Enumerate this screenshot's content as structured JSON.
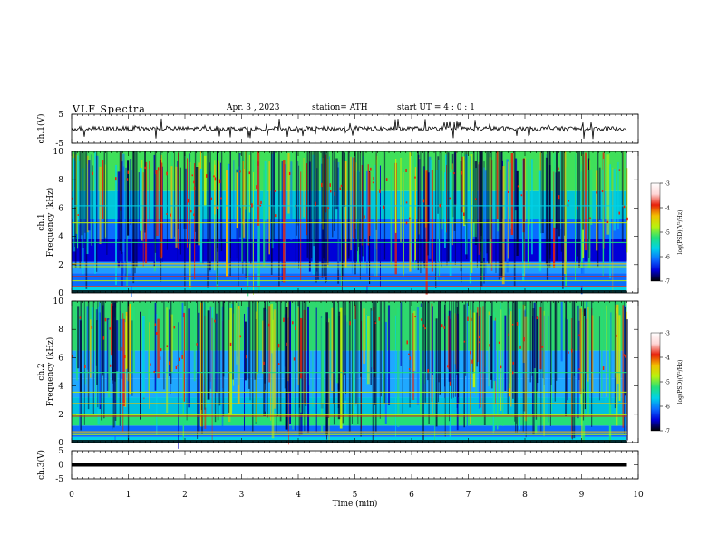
{
  "header": {
    "title": "VLF  Spectra",
    "date": "Apr. 3  , 2023",
    "station": "station= ATH",
    "start": "start  UT  =   4  : 0  : 1"
  },
  "chart_data": [
    {
      "type": "line",
      "ylabel": "ch.1(V)",
      "ylim": [
        -5,
        5
      ],
      "y_ticks": [
        "5",
        "-5"
      ],
      "x_range_min": [
        0,
        9.8
      ],
      "description_of_signal": "noisy waveform around 0 V with spikes"
    },
    {
      "type": "heatmap",
      "ylabel": "ch.1\nFrequency (kHz)",
      "ylabel_lines": [
        "ch.1",
        "Frequency (kHz)"
      ],
      "ylim": [
        0,
        10
      ],
      "y_ticks": [
        "0",
        "2",
        "4",
        "6",
        "8",
        "10"
      ],
      "colorbar": {
        "label": "log(PSD)(V²/Hz)",
        "ticks": [
          "-3",
          "-4",
          "-5",
          "-6",
          "-7"
        ],
        "range": [
          -7,
          -3
        ]
      }
    },
    {
      "type": "heatmap",
      "ylabel": "ch.2\nFrequency (kHz)",
      "ylabel_lines": [
        "ch.2",
        "Frequency (kHz)"
      ],
      "ylim": [
        0,
        10
      ],
      "y_ticks": [
        "0",
        "2",
        "4",
        "6",
        "8",
        "10"
      ],
      "colorbar": {
        "label": "log(PSD)(V²/Hz)",
        "ticks": [
          "-3",
          "-4",
          "-5",
          "-6",
          "-7"
        ],
        "range": [
          -7,
          -3
        ]
      }
    },
    {
      "type": "line",
      "ylabel": "ch.3(V)",
      "ylim": [
        -5,
        5
      ],
      "y_ticks": [
        "5",
        "0",
        "-5"
      ],
      "flat_value": 0
    }
  ],
  "xaxis": {
    "label": "Time  (min)",
    "range": [
      0,
      10
    ],
    "ticks": [
      "0",
      "1",
      "2",
      "3",
      "4",
      "5",
      "6",
      "7",
      "8",
      "9",
      "10"
    ]
  },
  "colors": {
    "colormap": [
      "#000000",
      "#0000d8",
      "#0a6cff",
      "#00d2e8",
      "#23e07a",
      "#b8f20e",
      "#f2c000",
      "#e8200a",
      "#ffd6d6",
      "#ffffff"
    ],
    "frame": "#000000"
  }
}
